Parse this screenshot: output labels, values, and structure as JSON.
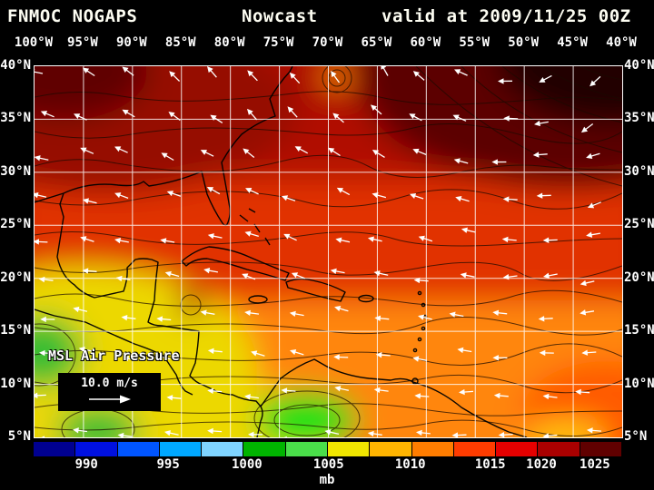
{
  "header": {
    "agency": "FNMOC NOGAPS",
    "product": "Nowcast",
    "valid_time": "valid at 2009/11/25 00Z"
  },
  "axes": {
    "lon_labels": [
      "100°W",
      "95°W",
      "90°W",
      "85°W",
      "80°W",
      "75°W",
      "70°W",
      "65°W",
      "60°W",
      "55°W",
      "50°W",
      "45°W",
      "40°W"
    ],
    "lat_labels": [
      "40°N",
      "35°N",
      "30°N",
      "25°N",
      "20°N",
      "15°N",
      "10°N",
      "5°N"
    ]
  },
  "map": {
    "field_label": "MSL Air Pressure",
    "wind_legend_label": "10.0 m/s"
  },
  "colorbar": {
    "unit_label": "mb",
    "tick_labels": [
      "990",
      "995",
      "1000",
      "1005",
      "1010",
      "1015",
      "1020",
      "1025"
    ],
    "tick_positions": [
      0.09,
      0.229,
      0.363,
      0.502,
      0.641,
      0.777,
      0.864,
      0.955
    ],
    "segment_colors": [
      "#000090",
      "#0010e0",
      "#0055ff",
      "#00a8ff",
      "#7fd4ff",
      "#00b400",
      "#4ade4a",
      "#f0e600",
      "#ffb400",
      "#ff7d00",
      "#ff3c00",
      "#e60000",
      "#aa0000",
      "#600000"
    ]
  },
  "map_data": {
    "type": "filled_contour_map",
    "variable": "MSL Air Pressure",
    "unit": "mb",
    "model": "FNMOC NOGAPS",
    "product": "Nowcast",
    "valid": "2009/11/25 00Z",
    "lon_extent": [
      "100°W",
      "40°W"
    ],
    "lat_extent": [
      "5°N",
      "40°N"
    ],
    "grid_interval_deg": 5,
    "colorbar_ticks_mb": [
      990,
      995,
      1000,
      1005,
      1010,
      1015,
      1020,
      1025
    ],
    "wind_vector_reference_mps": 10.0,
    "pattern_summary": "High pressure (dark red to near-black, >1020 mb) over the NW Atlantic with maximum in the northeast corner; pressure falls southwestward through red/orange (~1010-1015 mb) over the Gulf and Caribbean to yellow (~1008 mb) and green lows (~1005 mb) over the eastern Pacific and SW Caribbean; white trade-wind vectors point generally westward, curving clockwise around the Atlantic high."
  }
}
